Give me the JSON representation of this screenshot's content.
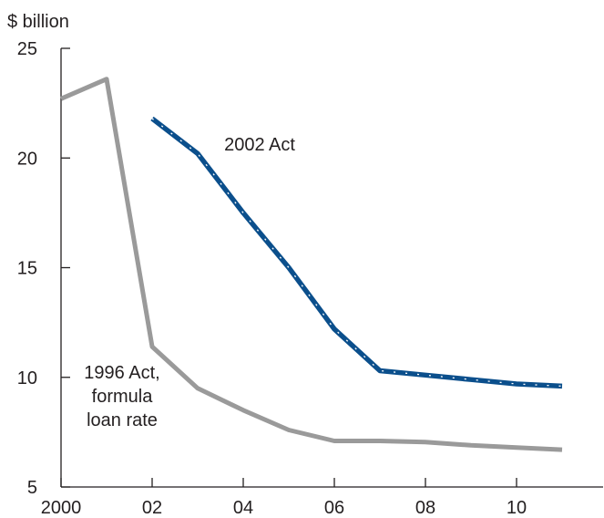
{
  "chart_data": {
    "type": "line",
    "ylabel": "$ billion",
    "xlabel": "",
    "xlim": [
      2000,
      2012
    ],
    "ylim": [
      5,
      25
    ],
    "x_ticks": [
      2000,
      2002,
      2004,
      2006,
      2008,
      2010
    ],
    "x_tick_labels": [
      "2000",
      "02",
      "04",
      "06",
      "08",
      "10"
    ],
    "y_ticks": [
      5,
      10,
      15,
      20,
      25
    ],
    "y_tick_labels": [
      "5",
      "10",
      "15",
      "20",
      "25"
    ],
    "grid": false,
    "legend": "none",
    "series": [
      {
        "name": "2002 Act",
        "label_lines": [
          "2002 Act"
        ],
        "color": "#0b4f8c",
        "style": "dashed",
        "x": [
          2002,
          2003,
          2004,
          2005,
          2006,
          2007,
          2008,
          2009,
          2010,
          2011
        ],
        "y": [
          21.8,
          20.2,
          17.5,
          15.0,
          12.2,
          10.3,
          10.1,
          9.9,
          9.7,
          9.6
        ]
      },
      {
        "name": "1996 Act, formula loan rate",
        "label_lines": [
          "1996 Act,",
          "formula",
          "loan rate"
        ],
        "color": "#9a9a9a",
        "style": "solid",
        "x": [
          2000,
          2001,
          2002,
          2003,
          2004,
          2005,
          2006,
          2007,
          2008,
          2009,
          2010,
          2011
        ],
        "y": [
          22.7,
          23.6,
          11.4,
          9.5,
          8.5,
          7.6,
          7.1,
          7.1,
          7.05,
          6.9,
          6.8,
          6.7
        ]
      }
    ]
  }
}
